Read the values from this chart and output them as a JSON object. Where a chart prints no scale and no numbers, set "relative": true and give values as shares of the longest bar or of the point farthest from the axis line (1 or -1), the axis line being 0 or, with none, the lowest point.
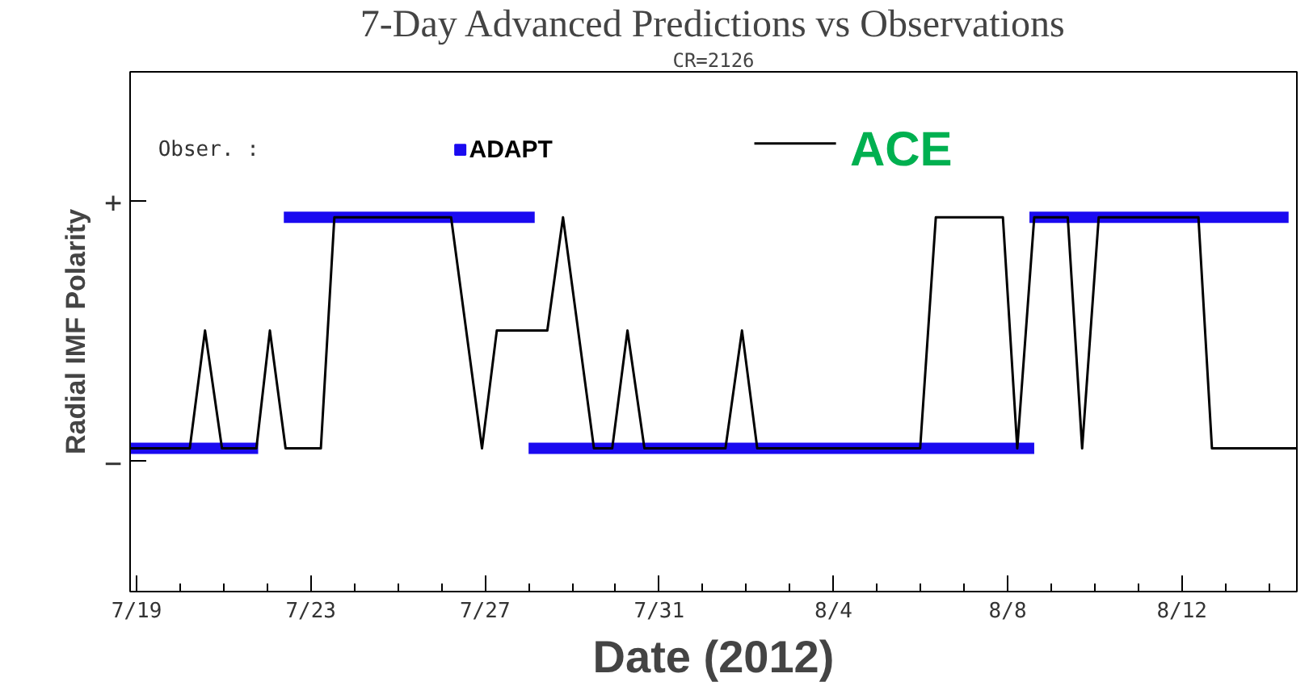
{
  "chart_data": {
    "type": "line",
    "title": "7-Day Advanced Predictions vs Observations",
    "subtitle": "CR=2126",
    "xlabel": "Date (2012)",
    "ylabel": "Radial IMF Polarity",
    "legend_title": "Obser. :",
    "legend": "top",
    "grid": false,
    "marker": "none",
    "relative": true,
    "xlim": [
      "2012-07-18T20:24",
      "2012-08-14T15:22"
    ],
    "xticks": [
      {
        "value": "2012-07-19",
        "label": "7/19"
      },
      {
        "value": "2012-07-23",
        "label": "7/23"
      },
      {
        "value": "2012-07-27",
        "label": "7/27"
      },
      {
        "value": "2012-07-31",
        "label": "7/31"
      },
      {
        "value": "2012-08-04",
        "label": "8/4"
      },
      {
        "value": "2012-08-08",
        "label": "8/8"
      },
      {
        "value": "2012-08-12",
        "label": "8/12"
      }
    ],
    "annotations": [
      "+",
      "−"
    ],
    "series": [
      {
        "name": "ADAPT",
        "color": "#1a0af0",
        "x": [
          "2012-07-18T20:24",
          "2012-07-21T18:58",
          null,
          "2012-07-22T09:07",
          "2012-07-28T03:22",
          null,
          "2012-07-28T00:00",
          "2012-08-08T14:38",
          null,
          "2012-08-08T12:00",
          "2012-08-14T10:48"
        ],
        "values": [
          0,
          0,
          null,
          1,
          1,
          null,
          0,
          0,
          null,
          1,
          1
        ]
      },
      {
        "name": "ACE",
        "color": "#000000",
        "x": [
          "2012-07-18T20:24",
          "2012-07-20T05:17",
          "2012-07-20T13:41",
          "2012-07-20T23:02",
          "2012-07-21T18:00",
          "2012-07-22T01:26",
          "2012-07-22T10:05",
          "2012-07-23T05:31",
          "2012-07-23T12:58",
          "2012-07-26T05:17",
          "2012-07-26T22:19",
          "2012-07-27T06:29",
          "2012-07-28T10:19",
          "2012-07-28T18:58",
          "2012-07-29T12:00",
          "2012-07-29T22:05",
          "2012-07-30T06:29",
          "2012-07-30T15:50",
          "2012-08-01T12:29",
          "2012-08-01T21:36",
          "2012-08-02T06:00",
          "2012-08-05T23:46",
          "2012-08-06T08:24",
          "2012-08-07T21:22",
          "2012-08-08T05:17",
          "2012-08-08T14:38",
          "2012-08-09T09:07",
          "2012-08-09T17:02",
          "2012-08-10T02:10",
          "2012-08-12T09:07",
          "2012-08-12T16:34",
          "2012-08-14T15:22"
        ],
        "values": [
          0,
          0,
          0.51,
          0,
          0,
          0.51,
          0,
          0,
          1,
          1,
          0,
          0.51,
          0.51,
          1,
          0,
          0,
          0.51,
          0,
          0,
          0.51,
          0,
          0,
          1,
          1,
          0,
          1,
          1,
          0,
          1,
          1,
          0,
          0
        ]
      }
    ]
  }
}
